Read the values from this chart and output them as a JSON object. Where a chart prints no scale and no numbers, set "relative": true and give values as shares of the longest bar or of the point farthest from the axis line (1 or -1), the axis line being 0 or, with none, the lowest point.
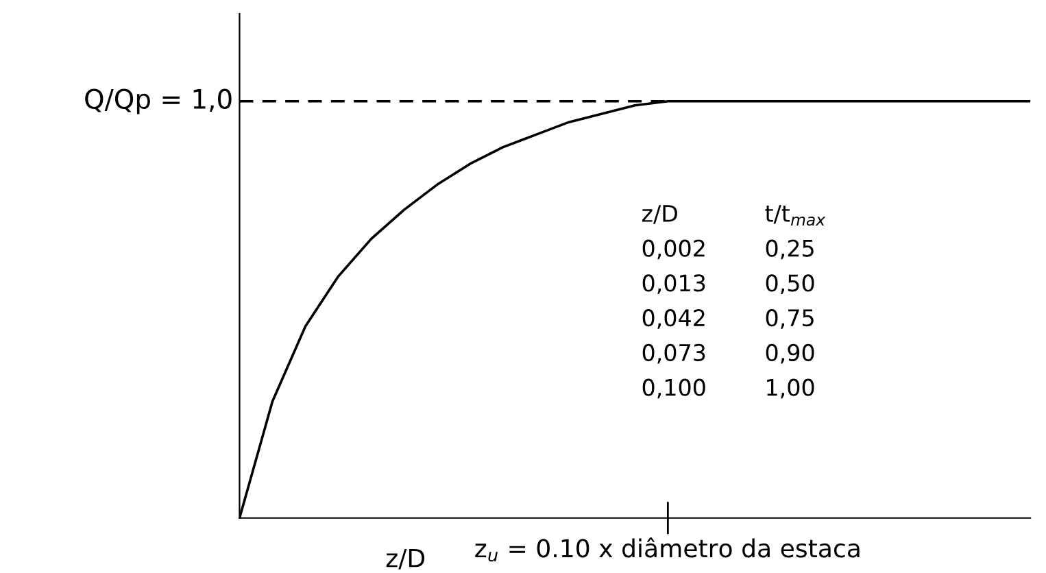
{
  "chart_data": {
    "type": "line",
    "relative": true,
    "categories": [
      null,
      null,
      null,
      null,
      null,
      null,
      null,
      null,
      null,
      null,
      null,
      null,
      null,
      null,
      null,
      null,
      null,
      null,
      null,
      null,
      null,
      null,
      null,
      null,
      null
    ],
    "values": [
      0,
      0.28,
      0.46,
      0.58,
      0.67,
      0.74,
      0.8,
      0.85,
      0.89,
      0.92,
      0.95,
      0.97,
      0.99,
      1.0,
      1.0,
      1.0,
      1.0,
      1.0,
      1.0,
      1.0,
      1.0,
      1.0,
      1.0,
      1.0,
      1.0
    ],
    "color": "#000000",
    "xlabel": "z/D",
    "ref_lines": [
      {
        "axis": "y",
        "value": 1.0,
        "label": "Q/Qp = 1,0",
        "line_style": "dashed",
        "color": "#000000"
      }
    ],
    "annotations": [
      "z$_{u}$ = 0.10 x diâmetro da estaca",
      "z/D",
      "t/t$_{max}$",
      "0,002",
      "0,25",
      "0,013",
      "0,50",
      "0,042",
      "0,75",
      "0,073",
      "0,90",
      "0,100",
      "1,00"
    ],
    "marker": "none",
    "line_style": "solid"
  }
}
